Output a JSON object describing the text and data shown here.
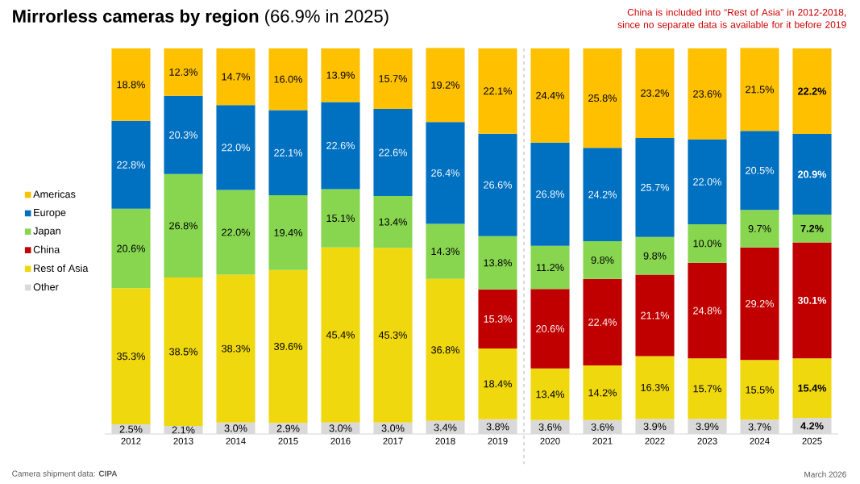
{
  "chart_data": {
    "type": "bar",
    "stacked": true,
    "title": "**Mirrorless cameras by region** (66.9% in 2025)",
    "categories": [
      "2012",
      "2013",
      "2014",
      "2015",
      "2016",
      "2017",
      "2018",
      "2019",
      "2020",
      "2021",
      "2022",
      "2023",
      "2024",
      "2025"
    ],
    "ylim": [
      0,
      100
    ],
    "legend": "left",
    "tick_labels": "x",
    "series": [
      {
        "name": "Other",
        "color": "#d9d9d9",
        "values": [
          2.5,
          2.1,
          3.0,
          2.9,
          3.0,
          3.0,
          3.4,
          3.8,
          3.6,
          3.6,
          3.9,
          3.9,
          3.7,
          4.2
        ],
        "value_labels": [
          "2.5%",
          "2.1%",
          "3.0%",
          "2.9%",
          "3.0%",
          "3.0%",
          "3.4%",
          "3.8%",
          "3.6%",
          "3.6%",
          "3.9%",
          "3.9%",
          "3.7%",
          "**4.2%**"
        ]
      },
      {
        "name": "Rest of Asia",
        "color": "#f0d80f",
        "values": [
          35.3,
          38.5,
          38.3,
          39.6,
          45.4,
          45.3,
          36.8,
          18.4,
          13.4,
          14.2,
          16.3,
          15.7,
          15.5,
          15.4
        ],
        "value_labels": [
          "35.3%",
          "38.5%",
          "38.3%",
          "39.6%",
          "45.4%",
          "45.3%",
          "36.8%",
          "18.4%",
          "13.4%",
          "14.2%",
          "16.3%",
          "15.7%",
          "15.5%",
          "**15.4%**"
        ]
      },
      {
        "name": "China",
        "color": "#c00000",
        "values": [
          null,
          null,
          null,
          null,
          null,
          null,
          null,
          15.3,
          20.6,
          22.4,
          21.1,
          24.8,
          29.2,
          30.1
        ],
        "value_labels": [
          null,
          null,
          null,
          null,
          null,
          null,
          null,
          "15.3%",
          "20.6%",
          "22.4%",
          "21.1%",
          "24.8%",
          "29.2%",
          "**30.1%**"
        ]
      },
      {
        "name": "Japan",
        "color": "#88d650",
        "values": [
          20.6,
          26.8,
          22.0,
          19.4,
          15.1,
          13.4,
          14.3,
          13.8,
          11.2,
          9.8,
          9.8,
          10.0,
          9.7,
          7.2
        ],
        "value_labels": [
          "20.6%",
          "26.8%",
          "22.0%",
          "19.4%",
          "15.1%",
          "13.4%",
          "14.3%",
          "13.8%",
          "11.2%",
          "9.8%",
          "9.8%",
          "10.0%",
          "9.7%",
          "**7.2%**"
        ]
      },
      {
        "name": "Europe",
        "color": "#0070c0",
        "values": [
          22.8,
          20.3,
          22.0,
          22.1,
          22.6,
          22.6,
          26.4,
          26.6,
          26.8,
          24.2,
          25.7,
          22.0,
          20.5,
          20.9
        ],
        "value_labels": [
          "22.8%",
          "20.3%",
          "22.0%",
          "22.1%",
          "22.6%",
          "22.6%",
          "26.4%",
          "26.6%",
          "26.8%",
          "24.2%",
          "25.7%",
          "22.0%",
          "20.5%",
          "**20.9%**"
        ]
      },
      {
        "name": "Americas",
        "color": "#ffc000",
        "values": [
          18.8,
          12.3,
          14.7,
          16.0,
          13.9,
          15.7,
          19.2,
          22.1,
          24.4,
          25.8,
          23.2,
          23.6,
          21.5,
          22.2
        ],
        "value_labels": [
          "18.8%",
          "12.3%",
          "14.7%",
          "16.0%",
          "13.9%",
          "15.7%",
          "19.2%",
          "22.1%",
          "24.4%",
          "25.8%",
          "23.2%",
          "23.6%",
          "21.5%",
          "**22.2%**"
        ]
      }
    ],
    "annotations": [
      "China is included into “Rest of Asia” in 2012-2018, since no separate data is available for it before 2019",
      "Camera shipment data: **CIPA**",
      "March 2026"
    ]
  }
}
